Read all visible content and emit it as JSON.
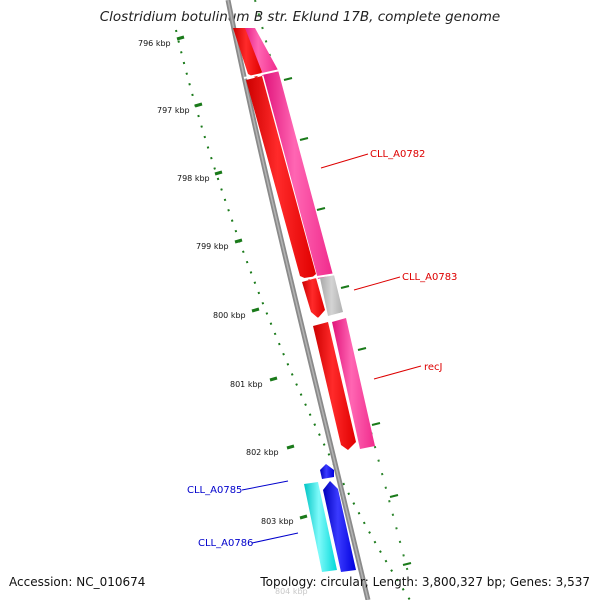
{
  "title": "Clostridium botulinum B str. Eklund 17B, complete genome",
  "footer": {
    "accession": "Accession: NC_010674",
    "summary": "Topology: circular; Length: 3,800,327 bp; Genes: 3,537"
  },
  "colors": {
    "backbone": "#888888",
    "tick": "#1a7a1a",
    "cds_red": "#ff0000",
    "cds_magenta": "#ff3399",
    "cds_gray": "#bbbbbb",
    "cds_blue": "#0000ee",
    "cds_cyan": "#00e5e5",
    "label_red": "#dd0000",
    "label_blue": "#0000cc"
  },
  "scale": {
    "ticks": [
      {
        "label": "796 kbp"
      },
      {
        "label": "797 kbp"
      },
      {
        "label": "798 kbp"
      },
      {
        "label": "799 kbp"
      },
      {
        "label": "800 kbp"
      },
      {
        "label": "801 kbp"
      },
      {
        "label": "802 kbp"
      },
      {
        "label": "803 kbp"
      },
      {
        "label": "804 kbp"
      }
    ]
  },
  "genes": [
    {
      "label": "CLL_A0782",
      "color": "label_red"
    },
    {
      "label": "CLL_A0783",
      "color": "label_red"
    },
    {
      "label": "recJ",
      "color": "label_red"
    },
    {
      "label": "CLL_A0785",
      "color": "label_blue"
    },
    {
      "label": "CLL_A0786",
      "color": "label_blue"
    }
  ]
}
